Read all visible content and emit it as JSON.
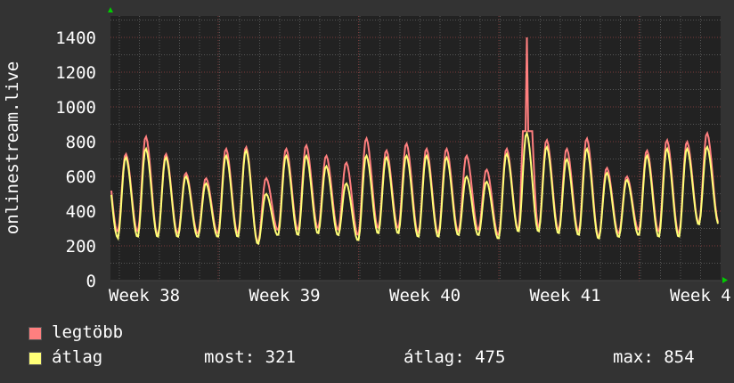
{
  "chart_data": {
    "type": "line",
    "ylabel": "onlinestream.live",
    "ylim": [
      0,
      1500
    ],
    "yticks": [
      "0",
      "200",
      "400",
      "600",
      "800",
      "1000",
      "1200",
      "1400"
    ],
    "xticks": [
      "Week 38",
      "Week 39",
      "Week 40",
      "Week 41",
      "Week 4"
    ],
    "grid": true,
    "days": 30,
    "series": [
      {
        "name": "legtöbb",
        "color": "#ff7f7f",
        "peaks": [
          730,
          830,
          730,
          620,
          590,
          760,
          770,
          590,
          760,
          780,
          720,
          680,
          820,
          750,
          790,
          760,
          760,
          720,
          640,
          760,
          1400,
          810,
          760,
          820,
          650,
          600,
          750,
          810,
          800,
          850
        ],
        "troughs": [
          280,
          280,
          260,
          270,
          270,
          270,
          270,
          220,
          290,
          290,
          300,
          290,
          260,
          300,
          300,
          270,
          270,
          280,
          290,
          260,
          290,
          300,
          290,
          280,
          250,
          270,
          290,
          280,
          270,
          330
        ]
      },
      {
        "name": "átlag",
        "color": "#ffff77",
        "peaks": [
          710,
          760,
          710,
          600,
          560,
          720,
          750,
          500,
          720,
          720,
          660,
          560,
          720,
          710,
          720,
          720,
          710,
          600,
          570,
          730,
          850,
          770,
          700,
          760,
          620,
          580,
          720,
          760,
          760,
          770
        ],
        "troughs": [
          240,
          250,
          250,
          250,
          250,
          250,
          250,
          210,
          260,
          260,
          270,
          260,
          230,
          270,
          270,
          250,
          250,
          260,
          260,
          240,
          280,
          280,
          270,
          260,
          240,
          250,
          260,
          250,
          250,
          321
        ]
      }
    ],
    "legend": [
      {
        "label": "legtöbb",
        "color": "#ff7f7f"
      },
      {
        "label": "átlag",
        "color": "#ffff77"
      }
    ],
    "stats": {
      "now": "most: 321",
      "avg": "átlag: 475",
      "max": "max: 854"
    }
  }
}
